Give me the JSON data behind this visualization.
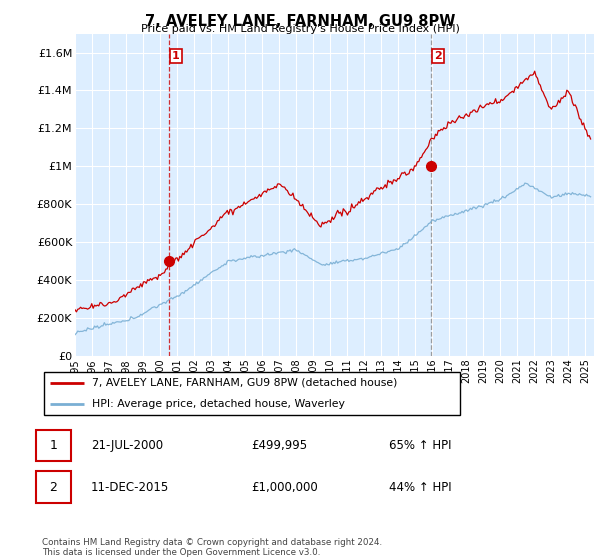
{
  "title": "7, AVELEY LANE, FARNHAM, GU9 8PW",
  "subtitle": "Price paid vs. HM Land Registry's House Price Index (HPI)",
  "xlim_start": 1995.0,
  "xlim_end": 2025.5,
  "ylim_min": 0,
  "ylim_max": 1700000,
  "yticks": [
    0,
    200000,
    400000,
    600000,
    800000,
    1000000,
    1200000,
    1400000,
    1600000
  ],
  "ytick_labels": [
    "£0",
    "£200K",
    "£400K",
    "£600K",
    "£800K",
    "£1M",
    "£1.2M",
    "£1.4M",
    "£1.6M"
  ],
  "sale1_x": 2000.55,
  "sale1_y": 499995,
  "sale2_x": 2015.95,
  "sale2_y": 1000000,
  "legend_line1": "7, AVELEY LANE, FARNHAM, GU9 8PW (detached house)",
  "legend_line2": "HPI: Average price, detached house, Waverley",
  "table_row1": [
    "1",
    "21-JUL-2000",
    "£499,995",
    "65% ↑ HPI"
  ],
  "table_row2": [
    "2",
    "11-DEC-2015",
    "£1,000,000",
    "44% ↑ HPI"
  ],
  "footer": "Contains HM Land Registry data © Crown copyright and database right 2024.\nThis data is licensed under the Open Government Licence v3.0.",
  "hpi_color": "#7aafd4",
  "price_color": "#cc0000",
  "bg_plot": "#ddeeff",
  "bg_fig": "#f8f8f8"
}
